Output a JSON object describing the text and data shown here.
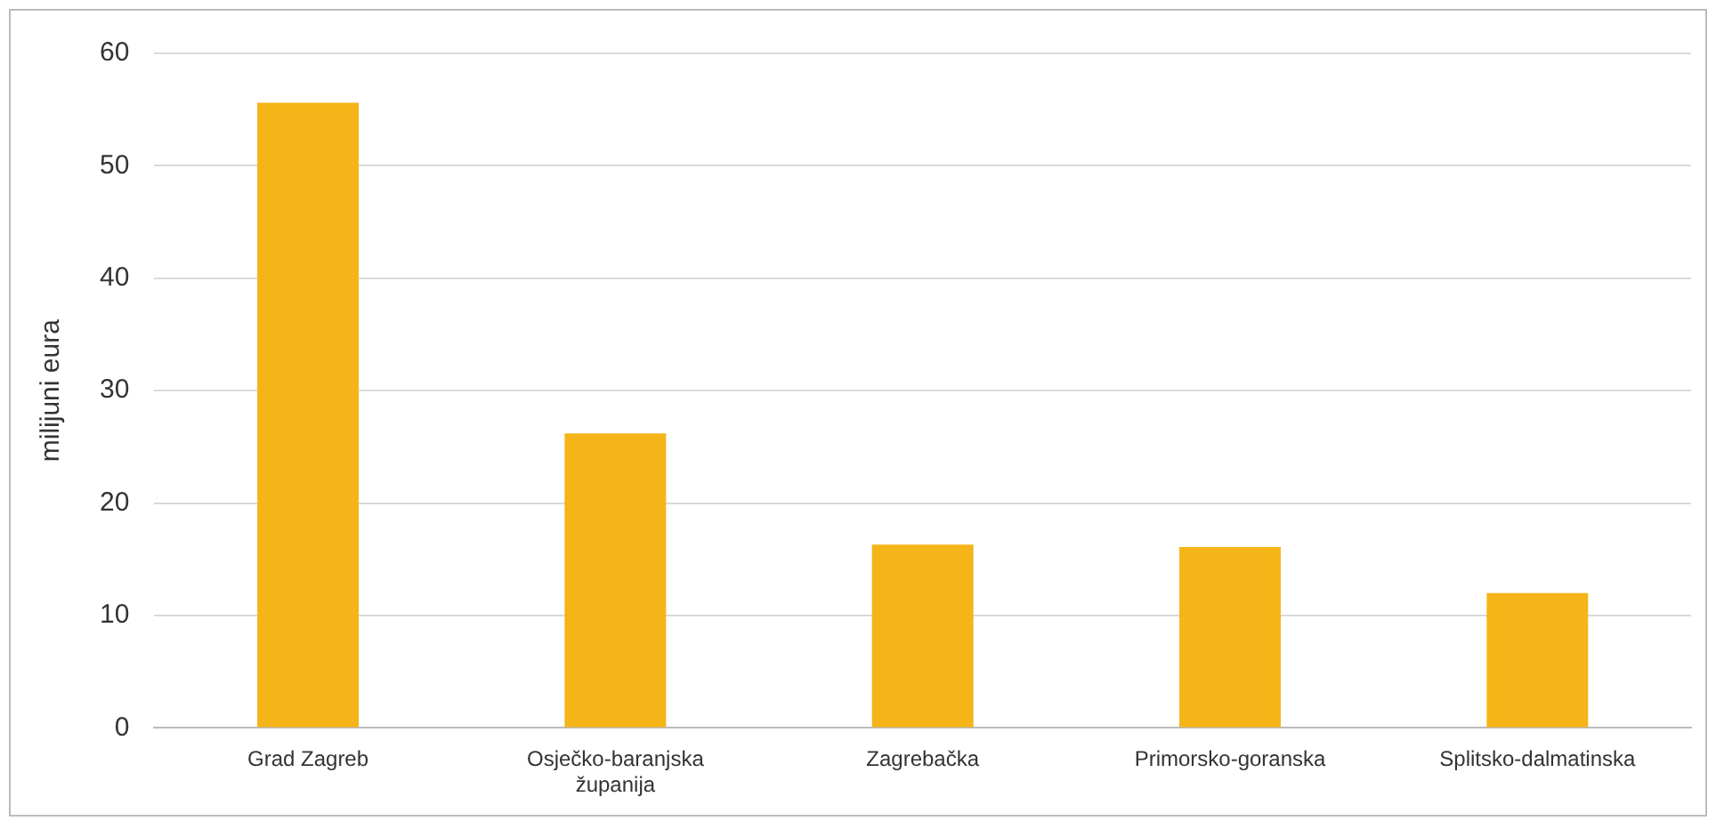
{
  "chart_data": {
    "type": "bar",
    "ylabel": "milijuni eura",
    "categories": [
      "Grad Zagreb",
      "Osječko-baranjska županija",
      "Zagrebačka",
      "Primorsko-goranska",
      "Splitsko-dalmatinska"
    ],
    "values": [
      55.6,
      26.2,
      16.3,
      16.1,
      12.0
    ],
    "color": "#f5b418",
    "ylim": [
      0,
      60
    ],
    "yticks": [
      0,
      10,
      20,
      30,
      40,
      50,
      60
    ],
    "grid": "y",
    "legend": false
  }
}
